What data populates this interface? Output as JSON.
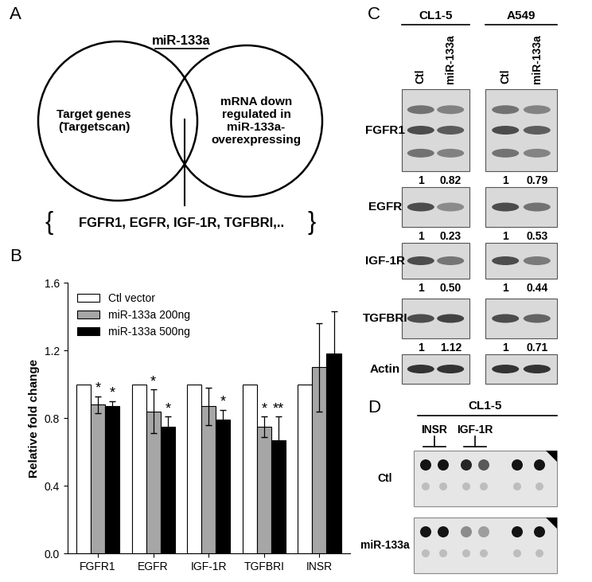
{
  "venn": {
    "panel": "A",
    "title": "miR-133a",
    "left_circle": "Target genes\n(Targetscan)",
    "right_circle": "mRNA down\nregulated in\nmiR-133a-\noverexpressing",
    "brace_open": "{",
    "brace_close": "}",
    "overlap_genes": "FGFR1, EGFR, IGF-1R, TGFBRI,.."
  },
  "chart_data": {
    "panel": "B",
    "type": "bar",
    "categories": [
      "FGFR1",
      "EGFR",
      "IGF-1R",
      "TGFBRI",
      "INSR"
    ],
    "ylabel": "Relative fold change",
    "ylim": [
      0,
      1.6
    ],
    "yticks": [
      {
        "value": 0,
        "label": "0.0"
      },
      0.4,
      0.8,
      1.2,
      1.6
    ],
    "legend": "upper left",
    "series": [
      {
        "name": "Ctl vector",
        "color": "#ffffff",
        "values": [
          1,
          1,
          1,
          1,
          1
        ]
      },
      {
        "name": "miR-133a 200ng",
        "color": "#a6a6a6",
        "values": [
          0.88,
          0.84,
          0.87,
          0.75,
          1.1
        ],
        "errors": [
          0.05,
          0.13,
          0.11,
          0.06,
          0.26
        ],
        "significance": [
          "*",
          "*",
          null,
          "*",
          null
        ]
      },
      {
        "name": "miR-133a 500ng",
        "color": "#000000",
        "values": [
          0.87,
          0.75,
          0.79,
          0.67,
          1.18
        ],
        "errors": [
          0.03,
          0.06,
          0.06,
          0.14,
          0.25
        ],
        "significance": [
          "*",
          "*",
          "*",
          "**",
          null
        ]
      }
    ]
  },
  "western_blot": {
    "panel": "C",
    "cell_lines": [
      {
        "name": "CL1-5",
        "lanes": [
          "Ctl",
          "miR-133a"
        ]
      },
      {
        "name": "A549",
        "lanes": [
          "Ctl",
          "miR-133a"
        ]
      }
    ],
    "rows": [
      {
        "name": "FGFR1",
        "values": [
          1,
          0.82,
          1,
          0.79
        ]
      },
      {
        "name": "EGFR",
        "values": [
          1,
          0.23,
          1,
          0.53
        ]
      },
      {
        "name": "IGF-1R",
        "values": [
          1,
          0.5,
          1,
          0.44
        ],
        "value_labels": [
          "1",
          "0.50",
          "1",
          "0.44"
        ]
      },
      {
        "name": "TGFBRI",
        "values": [
          1,
          1.12,
          1,
          0.71
        ]
      },
      {
        "name": "Actin"
      }
    ]
  },
  "dot_blot": {
    "panel": "D",
    "cell_line": "CL1-5",
    "spots": [
      "INSR",
      "IGF-1R"
    ],
    "rows": [
      "Ctl",
      "miR-133a"
    ]
  }
}
